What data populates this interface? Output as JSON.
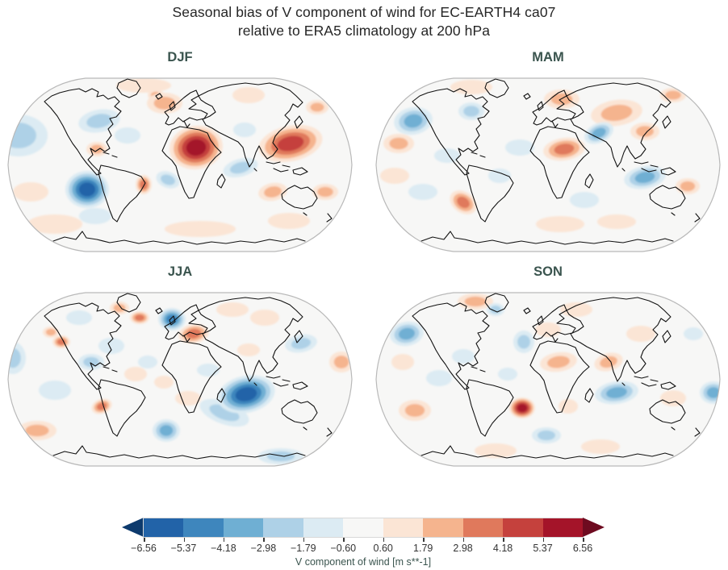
{
  "title": {
    "line1": "Seasonal bias of V component of wind for EC-EARTH4 ca07",
    "line2": "relative to ERA5 climatology at 200 hPa"
  },
  "chart_data": {
    "type": "heatmap",
    "title": "Seasonal bias of V component of wind for EC-EARTH4 ca07 relative to ERA5 climatology at 200 hPa",
    "projection": "Robinson world map, 2x2 seasonal grid",
    "variable": "V component of wind bias",
    "level": "200 hPa",
    "units": "m s**-1",
    "panels": [
      {
        "season": "DJF",
        "notable_anomalies": [
          {
            "region": "Central Africa (Sahel/Chad)",
            "sign": "positive",
            "peak": "about +5.4 to +6.6"
          },
          {
            "region": "East Asia / Japan",
            "sign": "positive",
            "peak": "about +3 to +4.2"
          },
          {
            "region": "Southeast Pacific west of Chile",
            "sign": "negative",
            "peak": "about -4.2 to -5.4"
          },
          {
            "region": "Northeast Pacific",
            "sign": "negative",
            "peak": "about -1.8"
          },
          {
            "region": "North Atlantic / Europe",
            "sign": "positive",
            "peak": "about +1.8"
          }
        ],
        "features": [
          [
            60,
            190,
            34,
            12,
            0,
            1,
            1
          ],
          [
            240,
            196,
            44,
            10,
            0,
            1,
            1
          ],
          [
            350,
            186,
            26,
            10,
            0,
            1,
            1
          ],
          [
            170,
            18,
            34,
            9,
            0,
            1,
            1
          ],
          [
            150,
            80,
            16,
            10,
            0,
            -1,
            1
          ],
          [
            110,
            180,
            20,
            10,
            0,
            -1,
            1
          ],
          [
            300,
            30,
            20,
            10,
            0,
            1,
            1
          ],
          [
            30,
            150,
            22,
            12,
            0,
            1,
            1
          ],
          [
            295,
            73,
            14,
            9,
            0,
            -1,
            1
          ],
          [
            395,
            150,
            16,
            10,
            0,
            1,
            2
          ],
          [
            385,
            45,
            14,
            9,
            0,
            1,
            2
          ],
          [
            185,
            30,
            10,
            7,
            0,
            1,
            2
          ],
          [
            330,
            150,
            18,
            11,
            -10,
            1,
            2
          ],
          [
            290,
            120,
            22,
            11,
            -15,
            -1,
            2
          ],
          [
            200,
            135,
            15,
            10,
            20,
            -1,
            2
          ],
          [
            15,
            80,
            36,
            26,
            0,
            -1,
            2
          ],
          [
            115,
            62,
            26,
            14,
            -10,
            -1,
            2
          ],
          [
            196,
            40,
            22,
            13,
            0,
            1,
            2
          ],
          [
            112,
            97,
            13,
            9,
            0,
            1,
            2
          ],
          [
            170,
            141,
            10,
            12,
            0,
            1,
            3
          ],
          [
            100,
            147,
            27,
            23,
            0,
            -1,
            5
          ],
          [
            352,
            90,
            40,
            22,
            -12,
            1,
            4
          ],
          [
            235,
            95,
            33,
            27,
            -8,
            1,
            5
          ]
        ]
      },
      {
        "season": "MAM",
        "notable_anomalies": [
          {
            "region": "Northwest Pacific",
            "sign": "negative",
            "peak": "about -3"
          },
          {
            "region": "Sahara",
            "sign": "positive",
            "peak": "about +3"
          },
          {
            "region": "Arabian Peninsula / Arabian Sea",
            "sign": "negative",
            "peak": "about -3"
          },
          {
            "region": "South Indian Ocean",
            "sign": "negative",
            "peak": "about -3"
          },
          {
            "region": "South Atlantic",
            "sign": "positive",
            "peak": "about +3"
          }
        ],
        "features": [
          [
            120,
            20,
            26,
            9,
            0,
            1,
            1
          ],
          [
            370,
            30,
            16,
            9,
            0,
            1,
            2
          ],
          [
            25,
            130,
            18,
            10,
            0,
            1,
            1
          ],
          [
            230,
            190,
            30,
            10,
            0,
            1,
            1
          ],
          [
            60,
            150,
            18,
            10,
            0,
            -1,
            1
          ],
          [
            300,
            187,
            24,
            9,
            0,
            1,
            1
          ],
          [
            155,
            130,
            14,
            9,
            0,
            -1,
            1
          ],
          [
            388,
            143,
            15,
            10,
            0,
            1,
            2
          ],
          [
            120,
            50,
            16,
            11,
            0,
            -1,
            2
          ],
          [
            30,
            90,
            19,
            12,
            0,
            1,
            2
          ],
          [
            232,
            35,
            22,
            12,
            0,
            1,
            2
          ],
          [
            300,
            52,
            32,
            16,
            -8,
            1,
            2
          ],
          [
            335,
            75,
            18,
            11,
            0,
            1,
            2
          ],
          [
            180,
            95,
            18,
            10,
            0,
            -1,
            1
          ],
          [
            90,
            105,
            16,
            9,
            0,
            -1,
            1
          ],
          [
            260,
            160,
            18,
            10,
            0,
            -1,
            1
          ],
          [
            48,
            62,
            24,
            17,
            -10,
            -1,
            3
          ],
          [
            235,
            97,
            26,
            14,
            -8,
            1,
            3
          ],
          [
            278,
            77,
            19,
            12,
            -25,
            -1,
            3
          ],
          [
            335,
            132,
            26,
            14,
            -10,
            -1,
            3
          ],
          [
            110,
            163,
            18,
            13,
            35,
            1,
            3
          ]
        ]
      },
      {
        "season": "JJA",
        "notable_anomalies": [
          {
            "region": "Central Indian Ocean",
            "sign": "negative",
            "peak": "about -5.4 to -6.6"
          },
          {
            "region": "Scandinavia / North Sea",
            "sign": "negative",
            "peak": "about -3 to -4.2"
          },
          {
            "region": "Eastern Mediterranean / Turkey",
            "sign": "positive",
            "peak": "about +3"
          },
          {
            "region": "Pacific Northwest America",
            "sign": "positive",
            "peak": "about +3"
          },
          {
            "region": "South Atlantic",
            "sign": "negative",
            "peak": "about -3"
          }
        ],
        "features": [
          [
            160,
            110,
            14,
            9,
            0,
            1,
            1
          ],
          [
            90,
            40,
            16,
            9,
            0,
            -1,
            1
          ],
          [
            225,
            140,
            16,
            9,
            0,
            1,
            1
          ],
          [
            280,
            30,
            20,
            9,
            0,
            1,
            1
          ],
          [
            60,
            130,
            20,
            12,
            0,
            -1,
            1
          ],
          [
            130,
            75,
            16,
            10,
            0,
            -1,
            1
          ],
          [
            320,
            40,
            18,
            10,
            0,
            1,
            1
          ],
          [
            250,
            105,
            14,
            8,
            0,
            -1,
            1
          ],
          [
            195,
            120,
            12,
            8,
            0,
            1,
            1
          ],
          [
            175,
            95,
            12,
            8,
            0,
            -1,
            1
          ],
          [
            300,
            80,
            14,
            8,
            0,
            1,
            1
          ],
          [
            38,
            180,
            24,
            12,
            0,
            1,
            2
          ],
          [
            8,
            90,
            16,
            20,
            0,
            -1,
            2
          ],
          [
            365,
            72,
            20,
            11,
            -10,
            -1,
            2
          ],
          [
            415,
            95,
            15,
            13,
            0,
            1,
            2
          ],
          [
            340,
            212,
            28,
            10,
            0,
            -1,
            2
          ],
          [
            140,
            28,
            12,
            8,
            0,
            1,
            2
          ],
          [
            270,
            158,
            32,
            14,
            20,
            -1,
            2
          ],
          [
            105,
            95,
            16,
            10,
            0,
            -1,
            2
          ],
          [
            55,
            58,
            10,
            7,
            0,
            1,
            2
          ],
          [
            205,
            42,
            17,
            14,
            0,
            -1,
            4
          ],
          [
            232,
            60,
            19,
            12,
            -10,
            1,
            3
          ],
          [
            68,
            70,
            11,
            8,
            0,
            1,
            3
          ],
          [
            165,
            40,
            12,
            8,
            0,
            1,
            3
          ],
          [
            198,
            180,
            17,
            14,
            0,
            -1,
            3
          ],
          [
            118,
            150,
            13,
            9,
            -20,
            1,
            3
          ],
          [
            297,
            135,
            36,
            23,
            -12,
            -1,
            5
          ]
        ]
      },
      {
        "season": "SON",
        "notable_anomalies": [
          {
            "region": "Eastern Brazil",
            "sign": "positive",
            "peak": "about +5.4"
          },
          {
            "region": "Northwest Pacific",
            "sign": "negative",
            "peak": "about -3"
          },
          {
            "region": "Central Indian Ocean",
            "sign": "negative",
            "peak": "about -3"
          },
          {
            "region": "Sahara / Sahel",
            "sign": "positive",
            "peak": "about +2"
          },
          {
            "region": "West Pacific (map east edge)",
            "sign": "negative",
            "peak": "about -3"
          }
        ],
        "features": [
          [
            215,
            55,
            16,
            9,
            0,
            1,
            1
          ],
          [
            80,
            115,
            16,
            10,
            0,
            -1,
            1
          ],
          [
            150,
            205,
            26,
            9,
            0,
            1,
            1
          ],
          [
            280,
            200,
            24,
            9,
            0,
            1,
            1
          ],
          [
            370,
            140,
            16,
            10,
            0,
            1,
            1
          ],
          [
            110,
            88,
            14,
            9,
            0,
            -1,
            1
          ],
          [
            330,
            60,
            18,
            10,
            0,
            1,
            1
          ],
          [
            250,
            30,
            20,
            9,
            0,
            1,
            1
          ],
          [
            35,
            95,
            14,
            10,
            0,
            1,
            1
          ],
          [
            395,
            60,
            12,
            8,
            0,
            -1,
            1
          ],
          [
            165,
            110,
            12,
            8,
            0,
            -1,
            1
          ],
          [
            240,
            150,
            12,
            9,
            0,
            1,
            1
          ],
          [
            125,
            20,
            22,
            10,
            0,
            1,
            2
          ],
          [
            185,
            70,
            13,
            14,
            0,
            -1,
            2
          ],
          [
            50,
            155,
            20,
            13,
            0,
            1,
            2
          ],
          [
            290,
            95,
            18,
            11,
            -15,
            1,
            2
          ],
          [
            213,
            186,
            18,
            10,
            0,
            -1,
            2
          ],
          [
            150,
            30,
            11,
            8,
            0,
            -1,
            2
          ],
          [
            228,
            95,
            23,
            12,
            -8,
            1,
            2
          ],
          [
            40,
            60,
            21,
            15,
            -10,
            -1,
            3
          ],
          [
            300,
            133,
            27,
            14,
            -8,
            -1,
            3
          ],
          [
            420,
            133,
            17,
            14,
            0,
            -1,
            3
          ],
          [
            183,
            152,
            16,
            13,
            0,
            1,
            5
          ]
        ]
      }
    ],
    "colorbar": {
      "label": "V component of wind [m s**-1]",
      "ticks": [
        "−6.56",
        "−5.37",
        "−4.18",
        "−2.98",
        "−1.79",
        "−0.60",
        "0.60",
        "1.79",
        "2.98",
        "4.18",
        "5.37",
        "6.56"
      ],
      "segment_colors": [
        "#2263a8",
        "#3e86bd",
        "#6fafd3",
        "#aed1e7",
        "#dcebf3",
        "#f7f7f6",
        "#fbe5d5",
        "#f5b48e",
        "#e0795c",
        "#c5413d",
        "#a41429"
      ],
      "under_color": "#0d3a6d",
      "over_color": "#6e0b20",
      "extend": "both"
    },
    "palette": {
      "neg": [
        "#dcebf3",
        "#aed1e7",
        "#6fafd3",
        "#3e86bd",
        "#2263a8",
        "#0d3a6d"
      ],
      "pos": [
        "#fbe5d5",
        "#f5b48e",
        "#e0795c",
        "#c5413d",
        "#a41429",
        "#6e0b20"
      ]
    },
    "colors": {
      "background": "#ffffff",
      "map_bg": "#f7f7f6",
      "coast": "#121212",
      "map_frame": "#b9b9b9",
      "title": "#262626",
      "season_label": "#3a544e",
      "tick_label": "#333333"
    },
    "legend_position": "bottom",
    "grid": false
  }
}
